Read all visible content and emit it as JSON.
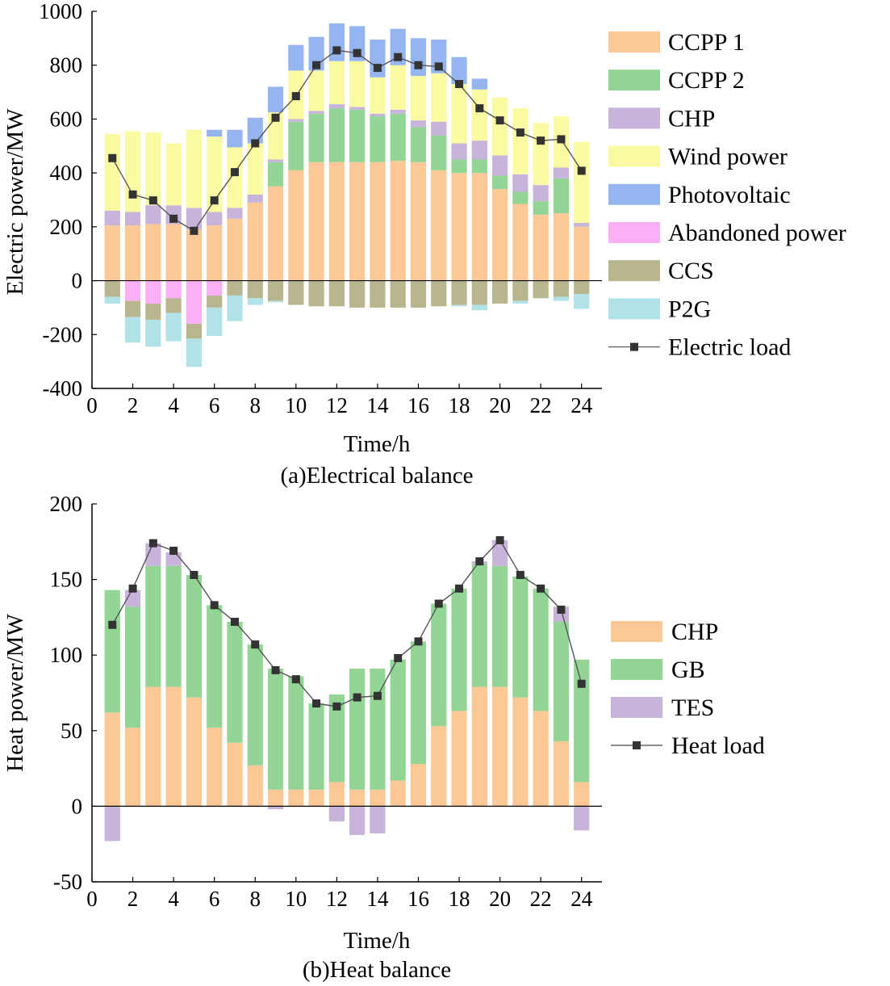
{
  "chart_data": [
    {
      "type": "bar",
      "stacked": true,
      "caption": "(a)Electrical balance",
      "xlabel": "Time/h",
      "ylabel": "Electric power/MW",
      "xlim": [
        0,
        25
      ],
      "ylim": [
        -400,
        1000
      ],
      "xticks": [
        0,
        2,
        4,
        6,
        8,
        10,
        12,
        14,
        16,
        18,
        20,
        22,
        24
      ],
      "yticks": [
        -400,
        -200,
        0,
        200,
        400,
        600,
        800,
        1000
      ],
      "x": [
        1,
        2,
        3,
        4,
        5,
        6,
        7,
        8,
        9,
        10,
        11,
        12,
        13,
        14,
        15,
        16,
        17,
        18,
        19,
        20,
        21,
        22,
        23,
        24
      ],
      "series": [
        {
          "name": "CCPP 1",
          "color": "#fcc896",
          "values": [
            205,
            205,
            210,
            210,
            190,
            205,
            230,
            290,
            350,
            410,
            440,
            440,
            440,
            440,
            445,
            440,
            410,
            400,
            400,
            340,
            285,
            245,
            250,
            200
          ]
        },
        {
          "name": "CCPP 2",
          "color": "#93d595",
          "values": [
            0,
            0,
            0,
            0,
            0,
            0,
            0,
            0,
            90,
            180,
            180,
            200,
            195,
            170,
            175,
            130,
            130,
            50,
            50,
            50,
            45,
            50,
            130,
            0
          ]
        },
        {
          "name": "CHP",
          "color": "#c8b3db",
          "values": [
            55,
            50,
            70,
            70,
            80,
            50,
            40,
            30,
            10,
            10,
            10,
            15,
            10,
            10,
            15,
            25,
            50,
            60,
            70,
            75,
            65,
            60,
            40,
            15
          ]
        },
        {
          "name": "Wind power",
          "color": "#fafaa3",
          "values": [
            285,
            300,
            270,
            230,
            290,
            280,
            225,
            190,
            175,
            180,
            150,
            160,
            170,
            135,
            165,
            165,
            180,
            220,
            190,
            215,
            245,
            230,
            190,
            300
          ]
        },
        {
          "name": "Photovoltaic",
          "color": "#95b5f1",
          "values": [
            0,
            0,
            0,
            0,
            0,
            25,
            65,
            95,
            95,
            95,
            125,
            140,
            130,
            140,
            135,
            140,
            125,
            100,
            40,
            0,
            0,
            0,
            0,
            0
          ]
        },
        {
          "name": "Abandoned power",
          "color": "#fbb0f5",
          "values": [
            0,
            -75,
            -85,
            -65,
            -160,
            -55,
            0,
            0,
            0,
            0,
            0,
            0,
            0,
            0,
            0,
            0,
            0,
            0,
            0,
            0,
            0,
            0,
            0,
            0
          ]
        },
        {
          "name": "CCS",
          "color": "#b8b68f",
          "values": [
            -60,
            -60,
            -60,
            -55,
            -55,
            -45,
            -55,
            -65,
            -75,
            -90,
            -95,
            -95,
            -100,
            -100,
            -100,
            -100,
            -95,
            -90,
            -90,
            -85,
            -75,
            -65,
            -60,
            -50
          ]
        },
        {
          "name": "P2G",
          "color": "#b0e2e8",
          "values": [
            -25,
            -95,
            -100,
            -105,
            -105,
            -105,
            -95,
            -25,
            -5,
            0,
            0,
            0,
            0,
            0,
            0,
            0,
            0,
            -5,
            -20,
            0,
            -10,
            0,
            -15,
            -55
          ]
        }
      ],
      "line": {
        "name": "Electric load",
        "color": "#333333",
        "values": [
          455,
          320,
          298,
          230,
          185,
          298,
          403,
          510,
          605,
          685,
          800,
          855,
          845,
          790,
          830,
          800,
          795,
          730,
          640,
          595,
          550,
          520,
          525,
          408
        ]
      }
    },
    {
      "type": "bar",
      "stacked": true,
      "caption": "(b)Heat balance",
      "xlabel": "Time/h",
      "ylabel": "Heat power/MW",
      "xlim": [
        0,
        25
      ],
      "ylim": [
        -50,
        200
      ],
      "xticks": [
        0,
        2,
        4,
        6,
        8,
        10,
        12,
        14,
        16,
        18,
        20,
        22,
        24
      ],
      "yticks": [
        -50,
        0,
        50,
        100,
        150,
        200
      ],
      "x": [
        1,
        2,
        3,
        4,
        5,
        6,
        7,
        8,
        9,
        10,
        11,
        12,
        13,
        14,
        15,
        16,
        17,
        18,
        19,
        20,
        21,
        22,
        23,
        24
      ],
      "series": [
        {
          "name": "CHP",
          "color": "#fcc896",
          "values": [
            62,
            52,
            79,
            79,
            72,
            52,
            42,
            27,
            11,
            11,
            11,
            16,
            11,
            11,
            17,
            28,
            53,
            63,
            79,
            79,
            72,
            63,
            43,
            16
          ]
        },
        {
          "name": "GB",
          "color": "#93d595",
          "values": [
            81,
            80,
            80,
            80,
            81,
            81,
            80,
            80,
            80,
            75,
            57,
            58,
            80,
            80,
            80,
            81,
            81,
            81,
            81,
            80,
            80,
            81,
            79,
            81
          ]
        },
        {
          "name": "TES",
          "color": "#c8b3db",
          "values": [
            -23,
            11,
            15,
            9,
            0,
            0,
            0,
            0,
            -2,
            0,
            0,
            -10,
            -19,
            -18,
            0,
            0,
            0,
            0,
            2,
            17,
            0,
            0,
            10,
            -16
          ]
        }
      ],
      "line": {
        "name": "Heat load",
        "color": "#333333",
        "values": [
          120,
          144,
          174,
          169,
          153,
          133,
          122,
          107,
          90,
          84,
          68,
          66,
          72,
          73,
          98,
          109,
          134,
          144,
          162,
          176,
          153,
          144,
          130,
          81
        ]
      }
    }
  ]
}
